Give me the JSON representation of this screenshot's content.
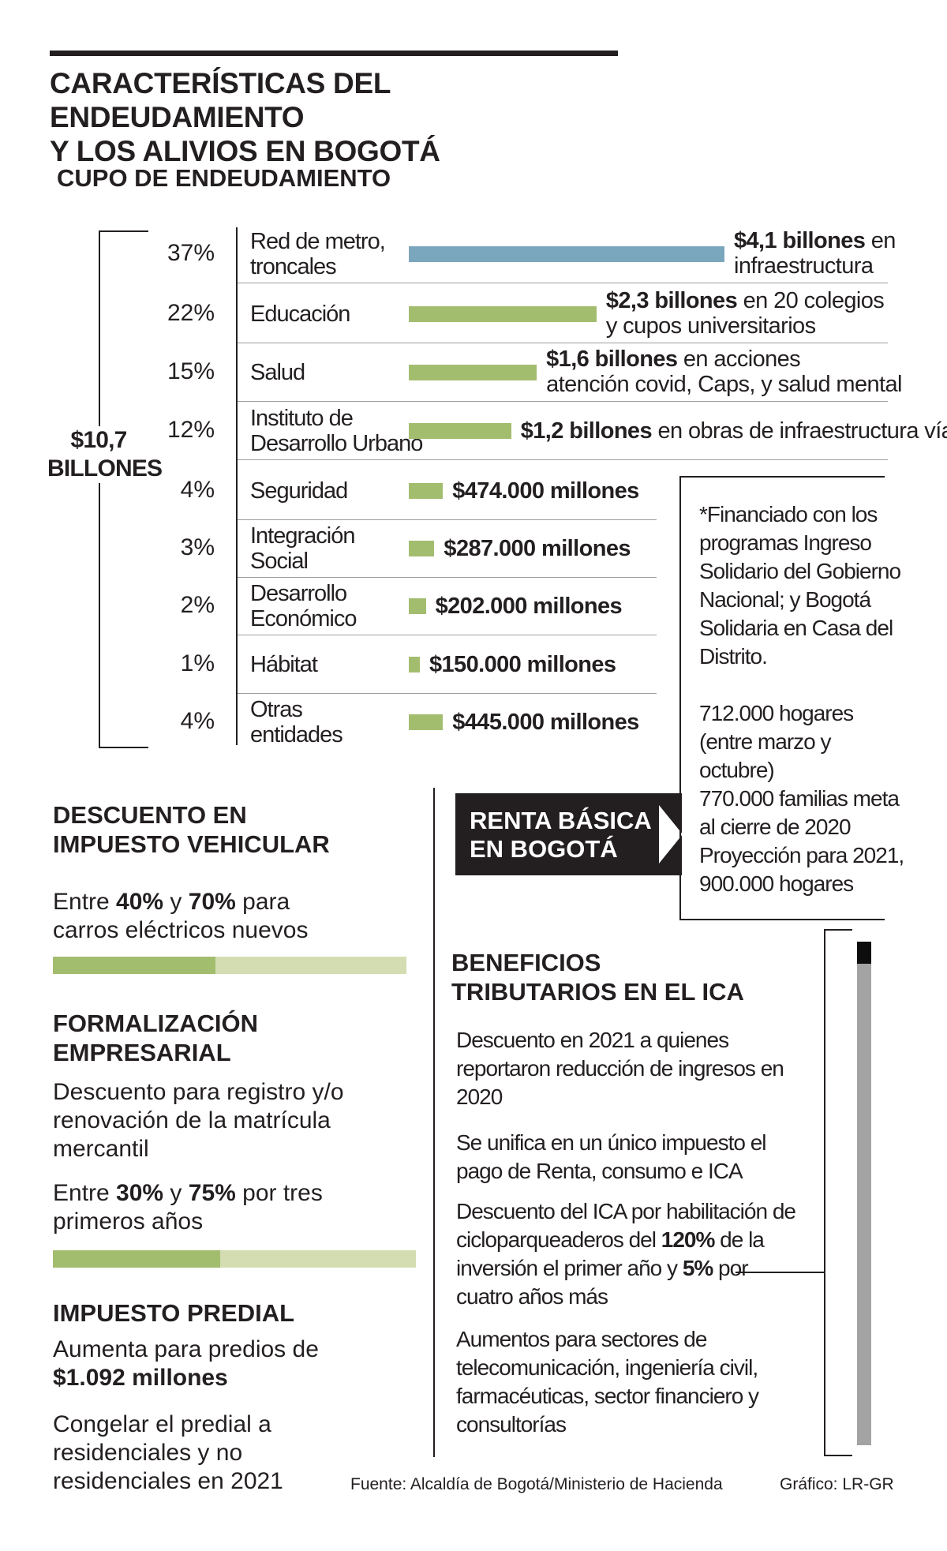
{
  "title_line1": "CARACTERÍSTICAS DEL ENDEUDAMIENTO",
  "title_line2": "Y LOS ALIVIOS EN BOGOTÁ",
  "cupo": {
    "heading": "CUPO DE ENDEUDAMIENTO",
    "total_value": "$10,7",
    "total_unit": "BILLONES"
  },
  "chart_data": {
    "type": "bar",
    "title": "CUPO DE ENDEUDAMIENTO",
    "orientation": "horizontal",
    "total": "$10,7 BILLONES",
    "categories": [
      "Red de metro, troncales",
      "Educación",
      "Salud",
      "Instituto de Desarrollo Urbano",
      "Seguridad",
      "Integración Social",
      "Desarrollo Económico",
      "Hábitat",
      "Otras entidades"
    ],
    "values_pct": [
      37,
      22,
      15,
      12,
      4,
      3,
      2,
      1,
      4
    ],
    "rows": [
      {
        "pct": "37%",
        "cat1": "Red de metro,",
        "cat2": "troncales",
        "value": 37,
        "bold": "$4,1 billones",
        "rest": " en",
        "line2": "infraestructura",
        "color": "#7ba7be"
      },
      {
        "pct": "22%",
        "cat1": "Educación",
        "cat2": "",
        "value": 22,
        "bold": "$2,3 billones",
        "rest": " en 20 colegios",
        "line2": "y cupos universitarios",
        "color": "#a3bd6f"
      },
      {
        "pct": "15%",
        "cat1": "Salud",
        "cat2": "",
        "value": 15,
        "bold": "$1,6 billones",
        "rest": " en acciones",
        "line2": "atención covid, Caps, y salud mental",
        "color": "#a3bd6f"
      },
      {
        "pct": "12%",
        "cat1": "Instituto de",
        "cat2": "Desarrollo Urbano",
        "value": 12,
        "bold": "$1,2 billones",
        "rest": " en obras de infraestructura víal",
        "line2": "",
        "color": "#a3bd6f"
      },
      {
        "pct": "4%",
        "cat1": "Seguridad",
        "cat2": "",
        "value": 4,
        "bold": "$474.000 millones",
        "rest": "",
        "line2": "",
        "color": "#a3bd6f"
      },
      {
        "pct": "3%",
        "cat1": "Integración",
        "cat2": "Social",
        "value": 3,
        "bold": "$287.000 millones",
        "rest": "",
        "line2": "",
        "color": "#a3bd6f"
      },
      {
        "pct": "2%",
        "cat1": "Desarrollo",
        "cat2": "Económico",
        "value": 2,
        "bold": "$202.000 millones",
        "rest": "",
        "line2": "",
        "color": "#a3bd6f"
      },
      {
        "pct": "1%",
        "cat1": "Hábitat",
        "cat2": "",
        "value": 1,
        "bold": "$150.000 millones",
        "rest": "",
        "line2": "",
        "color": "#a3bd6f"
      },
      {
        "pct": "4%",
        "cat1": "Otras",
        "cat2": "entidades",
        "value": 4,
        "bold": "$445.000 millones",
        "rest": "",
        "line2": "",
        "color": "#a3bd6f"
      }
    ]
  },
  "renta": {
    "heading_line1": "RENTA BÁSICA",
    "heading_line2": "EN BOGOTÁ",
    "note_lines": [
      "*Financiado con los",
      "programas Ingreso",
      "Solidario del Gobierno",
      "Nacional; y Bogotá",
      "Solidaria en Casa del",
      "Distrito."
    ],
    "stat_lines": [
      "712.000 hogares",
      "(entre marzo y",
      "octubre)",
      "770.000 familias meta",
      "al cierre de 2020",
      "Proyección para 2021,",
      "900.000 hogares"
    ]
  },
  "vehicular": {
    "heading_line1": "DESCUENTO EN",
    "heading_line2": "IMPUESTO VEHICULAR",
    "line1_a": "Entre ",
    "line1_b": "40%",
    "line1_c": " y ",
    "line1_d": "70%",
    "line1_e": " para",
    "line2": "carros eléctricos nuevos",
    "low_pct": 40,
    "high_pct": 70,
    "dark_color": "#a3bd6f",
    "light_color": "#d3ddb1"
  },
  "formalizacion": {
    "heading_line1": "FORMALIZACIÓN",
    "heading_line2": "EMPRESARIAL",
    "desc_lines": [
      "Descuento para registro y/o",
      "renovación de la matrícula",
      "mercantil"
    ],
    "line1_a": "Entre ",
    "line1_b": "30%",
    "line1_c": " y ",
    "line1_d": "75%",
    "line1_e": " por tres",
    "line2": "primeros años",
    "low_pct": 30,
    "high_pct": 75
  },
  "predial": {
    "heading": "IMPUESTO PREDIAL",
    "line1": "Aumenta para predios de",
    "line2_bold": "$1.092 millones",
    "congelar_lines": [
      "Congelar el predial a",
      "residenciales y no",
      "residenciales en 2021"
    ]
  },
  "ica": {
    "heading_line1": "BENEFICIOS",
    "heading_line2": "TRIBUTARIOS EN EL ICA",
    "item1_lines": [
      "Descuento en 2021 a quienes",
      "reportaron reducción de ingresos en",
      "2020"
    ],
    "item2_lines": [
      "Se unifica en un único impuesto el",
      "pago de Renta, consumo e ICA"
    ],
    "item3_l1": "Descuento del ICA por habilitación de",
    "item3_l2a": "cicloparqueaderos del ",
    "item3_l2b": "120%",
    "item3_l2c": " de la",
    "item3_l3a": "inversión el primer año y ",
    "item3_l3b": "5%",
    "item3_l3c": " por",
    "item3_l4": "cuatro años más",
    "item4_lines": [
      "Aumentos para sectores de",
      "telecomunicación, ingeniería civil,",
      "farmacéuticas, sector financiero y",
      "consultorías"
    ]
  },
  "footer": {
    "source": "Fuente: Alcaldía de Bogotá/Ministerio de Hacienda",
    "credit": "Gráfico: LR-GR"
  }
}
